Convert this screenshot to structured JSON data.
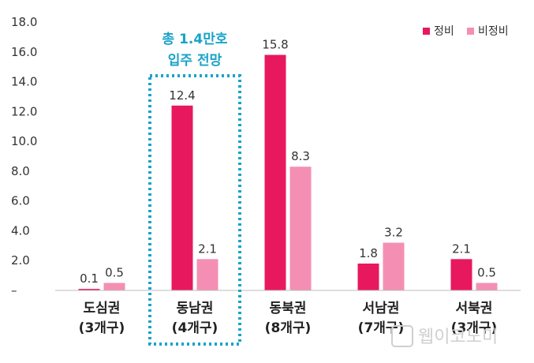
{
  "chart_data": {
    "type": "bar",
    "categories": [
      [
        "도심권",
        "(3개구)"
      ],
      [
        "동남권",
        "(4개구)"
      ],
      [
        "동북권",
        "(8개구)"
      ],
      [
        "서남권",
        "(7개구)"
      ],
      [
        "서북권",
        "(3개구)"
      ]
    ],
    "series": [
      {
        "name": "정비",
        "color": "#e8185f",
        "values": [
          0.1,
          12.4,
          15.8,
          1.8,
          2.1
        ],
        "labels": [
          "0.1",
          "12.4",
          "15.8",
          "1.8",
          "2.1"
        ]
      },
      {
        "name": "비정비",
        "color": "#f48fb3",
        "values": [
          0.5,
          2.1,
          8.3,
          3.2,
          0.5
        ],
        "labels": [
          "0.5",
          "2.1",
          "8.3",
          "3.2",
          "0.5"
        ]
      }
    ],
    "y_ticks": [
      "–",
      "2.0",
      "4.0",
      "6.0",
      "8.0",
      "10.0",
      "12.0",
      "14.0",
      "16.0",
      "18.0"
    ],
    "ylim": [
      0,
      18
    ],
    "grid": false,
    "legend_position": "top-right",
    "callout": {
      "category_index": 1,
      "lines": [
        "총 1.4만호",
        "입주 전망"
      ],
      "color": "#1aa3c7"
    },
    "watermark": "웹이코노미"
  }
}
